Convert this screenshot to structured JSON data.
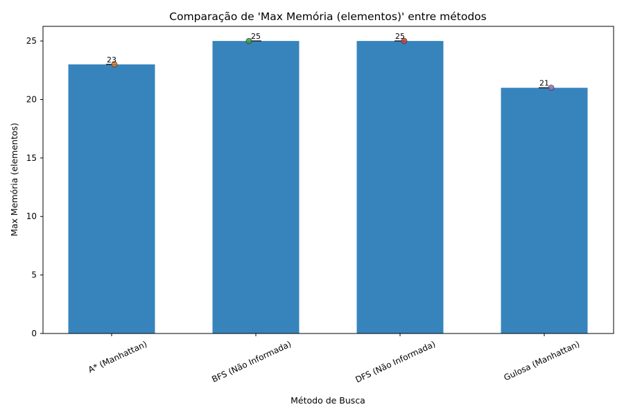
{
  "chart_data": {
    "type": "bar",
    "title": "Comparação de 'Max Memória (elementos)' entre métodos",
    "xlabel": "Método de Busca",
    "ylabel": "Max Memória (elementos)",
    "categories": [
      "A* (Manhattan)",
      "BFS (Não Informada)",
      "DFS (Não Informada)",
      "Gulosa (Manhattan)"
    ],
    "values": [
      23,
      25,
      25,
      21
    ],
    "data_labels": [
      "23",
      "25",
      "25",
      "21"
    ],
    "ylim": [
      0,
      26.25
    ],
    "yticks": [
      0,
      5,
      10,
      15,
      20,
      25
    ],
    "ytick_labels": [
      "0",
      "5",
      "10",
      "15",
      "20",
      "25"
    ],
    "point_x_offsets": [
      0.02,
      -0.05,
      0.03,
      0.05
    ],
    "bar_color": "#3784bd",
    "point_colors": [
      "#e07b2a",
      "#3aa03a",
      "#d13f3f",
      "#8f6fbf"
    ],
    "grid": false,
    "legend": "none"
  }
}
